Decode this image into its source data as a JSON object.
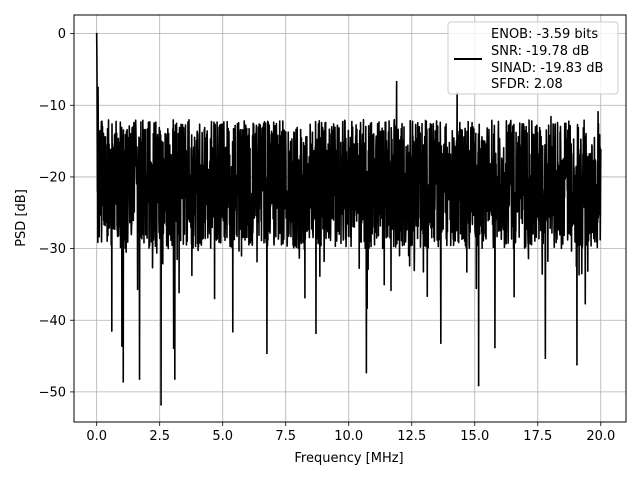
{
  "chart_data": {
    "type": "line",
    "title": "",
    "xlabel": "Frequency [MHz]",
    "ylabel": "PSD [dB]",
    "xlim": [
      -0.9,
      21.0
    ],
    "ylim": [
      -54.2,
      2.6
    ],
    "x_ticks": [
      0.0,
      2.5,
      5.0,
      7.5,
      10.0,
      12.5,
      15.0,
      17.5,
      20.0
    ],
    "x_tick_labels": [
      "0.0",
      "2.5",
      "5.0",
      "7.5",
      "10.0",
      "12.5",
      "15.0",
      "17.5",
      "20.0"
    ],
    "y_ticks": [
      0,
      -10,
      -20,
      -30,
      -40,
      -50
    ],
    "y_tick_labels": [
      "0",
      "−10",
      "−20",
      "−30",
      "−40",
      "−50"
    ],
    "grid": true,
    "legend_position": "top-right",
    "series": [
      {
        "color": "#000000",
        "x_range": [
          0.0,
          20.0
        ],
        "peak": {
          "x": 0.0,
          "y": 0.0
        },
        "noise_band_db": [
          -30,
          -12
        ],
        "notable_points": [
          {
            "x": 0.05,
            "y": -7.5
          },
          {
            "x": 0.12,
            "y": -21.6
          },
          {
            "x": 0.6,
            "y": -41.5
          },
          {
            "x": 1.0,
            "y": -43.6
          },
          {
            "x": 1.05,
            "y": -48.6
          },
          {
            "x": 1.7,
            "y": -48.2
          },
          {
            "x": 2.55,
            "y": -51.8
          },
          {
            "x": 3.05,
            "y": -43.9
          },
          {
            "x": 3.1,
            "y": -48.2
          },
          {
            "x": 5.4,
            "y": -41.6
          },
          {
            "x": 6.75,
            "y": -44.6
          },
          {
            "x": 8.7,
            "y": -41.8
          },
          {
            "x": 10.7,
            "y": -47.3
          },
          {
            "x": 11.9,
            "y": -6.7
          },
          {
            "x": 13.65,
            "y": -43.2
          },
          {
            "x": 14.3,
            "y": -8.3
          },
          {
            "x": 15.15,
            "y": -49.1
          },
          {
            "x": 15.8,
            "y": -43.8
          },
          {
            "x": 17.8,
            "y": -45.3
          },
          {
            "x": 19.05,
            "y": -46.2
          }
        ]
      }
    ],
    "legend_entries": [
      "ENOB: -3.59 bits",
      "SNR: -19.78 dB",
      "SINAD: -19.83 dB",
      "SFDR: 2.08"
    ]
  }
}
